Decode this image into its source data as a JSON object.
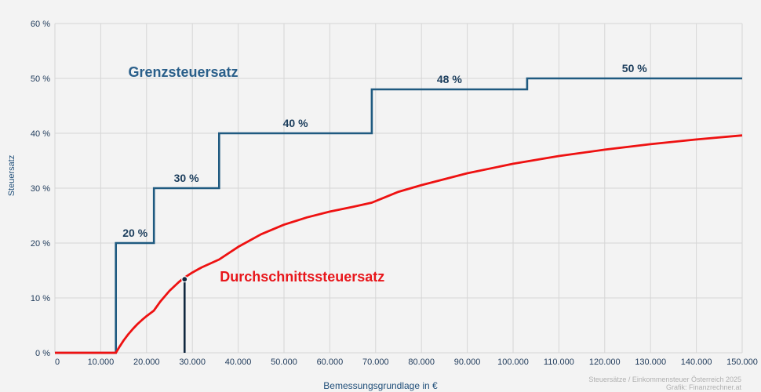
{
  "chart_data": {
    "type": "line",
    "xlabel": "Bemessungsgrundlage in €",
    "ylabel": "Steuersatz",
    "xlim": [
      0,
      150000
    ],
    "ylim": [
      0,
      60
    ],
    "x_ticks": [
      0,
      10000,
      20000,
      30000,
      40000,
      50000,
      60000,
      70000,
      80000,
      90000,
      100000,
      110000,
      120000,
      130000,
      140000,
      150000
    ],
    "x_tick_labels": [
      "0",
      "10.000",
      "20.000",
      "30.000",
      "40.000",
      "50.000",
      "60.000",
      "70.000",
      "80.000",
      "90.000",
      "100.000",
      "110.000",
      "120.000",
      "130.000",
      "140.000",
      "150.000"
    ],
    "y_ticks": [
      0,
      10,
      20,
      30,
      40,
      50,
      60
    ],
    "y_tick_labels": [
      "0 %",
      "10 %",
      "20 %",
      "30 %",
      "40 %",
      "50 %",
      "60 %"
    ],
    "grid": true,
    "colors": {
      "grenz": "#1f5a80",
      "durch": "#ee1111",
      "marker": "#10283f",
      "grid": "#d6d6d6"
    },
    "series": [
      {
        "name": "Grenzsteuersatz",
        "type": "step",
        "x": [
          0,
          13308,
          13308,
          21617,
          21617,
          35836,
          35836,
          69166,
          69166,
          103072,
          103072,
          150000
        ],
        "y": [
          0,
          0,
          20,
          20,
          30,
          30,
          40,
          40,
          48,
          48,
          50,
          50
        ],
        "step_labels": [
          {
            "text": "20 %",
            "x": 17500,
            "y": 20
          },
          {
            "text": "30 %",
            "x": 28700,
            "y": 30
          },
          {
            "text": "40 %",
            "x": 52500,
            "y": 40
          },
          {
            "text": "48 %",
            "x": 86100,
            "y": 48
          },
          {
            "text": "50 %",
            "x": 126500,
            "y": 50
          }
        ]
      },
      {
        "name": "Durchschnittssteuersatz",
        "type": "line",
        "x": [
          0,
          13308,
          14000,
          15000,
          16000,
          17000,
          18000,
          19000,
          20000,
          21617,
          23000,
          25000,
          27000,
          28000,
          30000,
          32000,
          35836,
          40000,
          45000,
          50000,
          55000,
          60000,
          65000,
          69166,
          75000,
          80000,
          90000,
          100000,
          110000,
          120000,
          130000,
          140000,
          150000
        ],
        "y": [
          0,
          0,
          0.99,
          2.26,
          3.36,
          4.34,
          5.21,
          5.99,
          6.69,
          7.7,
          9.33,
          11.29,
          12.86,
          13.54,
          14.63,
          15.55,
          17.0,
          19.3,
          21.6,
          23.34,
          24.67,
          25.73,
          26.58,
          27.36,
          29.34,
          30.56,
          32.72,
          34.44,
          35.85,
          37.02,
          38.02,
          38.87,
          39.62
        ]
      }
    ],
    "markers": [
      {
        "x": 28300,
        "y": 13.4,
        "drop_to_axis": true
      }
    ],
    "annotations": [
      {
        "text": "Grenzsteuersatz",
        "x": 16000,
        "y": 50.3,
        "series": "grenz"
      },
      {
        "text": "Durchschnittssteuersatz",
        "x": 36000,
        "y": 13.0,
        "series": "durch"
      }
    ]
  },
  "credit_line1": "Steuersätze / Einkommensteuer Österreich 2025",
  "credit_line2": "Grafik: Finanzrechner.at"
}
